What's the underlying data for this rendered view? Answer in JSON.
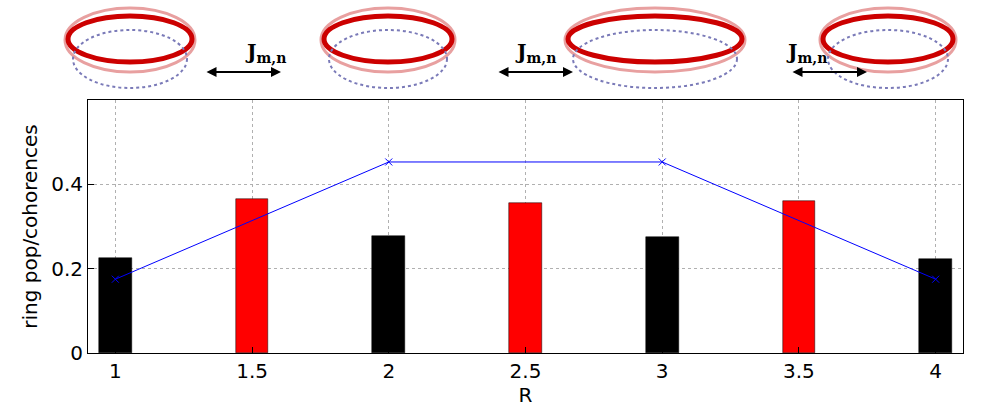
{
  "chart_data": {
    "type": "bar",
    "x_label": "R",
    "y_label": "ring pop/cohorences",
    "xlim": [
      0.9,
      4.1
    ],
    "xticks": [
      1,
      1.5,
      2,
      2.5,
      3,
      3.5,
      4
    ],
    "ylim": [
      0,
      0.6
    ],
    "yticks": [
      0,
      0.2,
      0.4
    ],
    "grid": true,
    "series": [
      {
        "type": "bar",
        "x": [
          1,
          1.5,
          2,
          2.5,
          3,
          3.5,
          4
        ],
        "values": [
          0.225,
          0.366,
          0.277,
          0.355,
          0.274,
          0.361,
          0.223
        ],
        "colors": [
          "#000000",
          "#ff0000",
          "#000000",
          "#ff0000",
          "#000000",
          "#ff0000",
          "#000000"
        ]
      },
      {
        "type": "line",
        "x": [
          1,
          2,
          3,
          4
        ],
        "values": [
          0.175,
          0.453,
          0.453,
          0.175
        ],
        "color": "#0000ff",
        "marker": "x",
        "line_style": "solid"
      }
    ],
    "annotations": [
      {
        "text": "J",
        "subscript": "m,n"
      },
      {
        "text": "J",
        "subscript": "m,n"
      },
      {
        "text": "J",
        "subscript": "m,n"
      }
    ]
  }
}
